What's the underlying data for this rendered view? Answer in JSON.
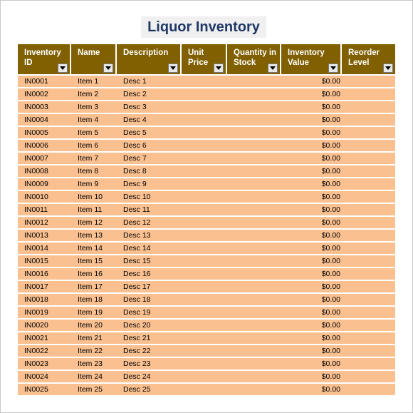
{
  "title": "Liquor Inventory",
  "table": {
    "headers": [
      "Inventory ID",
      "Name",
      "Description",
      "Unit Price",
      "Quantity in Stock",
      "Inventory Value",
      "Reorder Level"
    ],
    "rows": [
      {
        "id": "IN0001",
        "name": "Item 1",
        "desc": "Desc 1",
        "value": "$0.00"
      },
      {
        "id": "IN0002",
        "name": "Item 2",
        "desc": "Desc 2",
        "value": "$0.00"
      },
      {
        "id": "IN0003",
        "name": "Item 3",
        "desc": "Desc 3",
        "value": "$0.00"
      },
      {
        "id": "IN0004",
        "name": "Item 4",
        "desc": "Desc 4",
        "value": "$0.00"
      },
      {
        "id": "IN0005",
        "name": "Item 5",
        "desc": "Desc 5",
        "value": "$0.00"
      },
      {
        "id": "IN0006",
        "name": "Item 6",
        "desc": "Desc 6",
        "value": "$0.00"
      },
      {
        "id": "IN0007",
        "name": "Item 7",
        "desc": "Desc 7",
        "value": "$0.00"
      },
      {
        "id": "IN0008",
        "name": "Item 8",
        "desc": "Desc 8",
        "value": "$0.00"
      },
      {
        "id": "IN0009",
        "name": "Item 9",
        "desc": "Desc 9",
        "value": "$0.00"
      },
      {
        "id": "IN0010",
        "name": "Item 10",
        "desc": "Desc 10",
        "value": "$0.00"
      },
      {
        "id": "IN0011",
        "name": "Item 11",
        "desc": "Desc 11",
        "value": "$0.00"
      },
      {
        "id": "IN0012",
        "name": "Item 12",
        "desc": "Desc 12",
        "value": "$0.00"
      },
      {
        "id": "IN0013",
        "name": "Item 13",
        "desc": "Desc 13",
        "value": "$0.00"
      },
      {
        "id": "IN0014",
        "name": "Item 14",
        "desc": "Desc 14",
        "value": "$0.00"
      },
      {
        "id": "IN0015",
        "name": "Item 15",
        "desc": "Desc 15",
        "value": "$0.00"
      },
      {
        "id": "IN0016",
        "name": "Item 16",
        "desc": "Desc 16",
        "value": "$0.00"
      },
      {
        "id": "IN0017",
        "name": "Item 17",
        "desc": "Desc 17",
        "value": "$0.00"
      },
      {
        "id": "IN0018",
        "name": "Item 18",
        "desc": "Desc 18",
        "value": "$0.00"
      },
      {
        "id": "IN0019",
        "name": "Item 19",
        "desc": "Desc 19",
        "value": "$0.00"
      },
      {
        "id": "IN0020",
        "name": "Item 20",
        "desc": "Desc 20",
        "value": "$0.00"
      },
      {
        "id": "IN0021",
        "name": "Item 21",
        "desc": "Desc 21",
        "value": "$0.00"
      },
      {
        "id": "IN0022",
        "name": "Item 22",
        "desc": "Desc 22",
        "value": "$0.00"
      },
      {
        "id": "IN0023",
        "name": "Item 23",
        "desc": "Desc 23",
        "value": "$0.00"
      },
      {
        "id": "IN0024",
        "name": "Item 24",
        "desc": "Desc 24",
        "value": "$0.00"
      },
      {
        "id": "IN0025",
        "name": "Item 25",
        "desc": "Desc 25",
        "value": "$0.00"
      }
    ]
  },
  "colors": {
    "header_bg": "#806000",
    "header_text": "#ffffff",
    "row_bg": "#fac090",
    "title_text": "#1f3864"
  },
  "icons": {
    "filter": "dropdown-arrow-icon"
  }
}
